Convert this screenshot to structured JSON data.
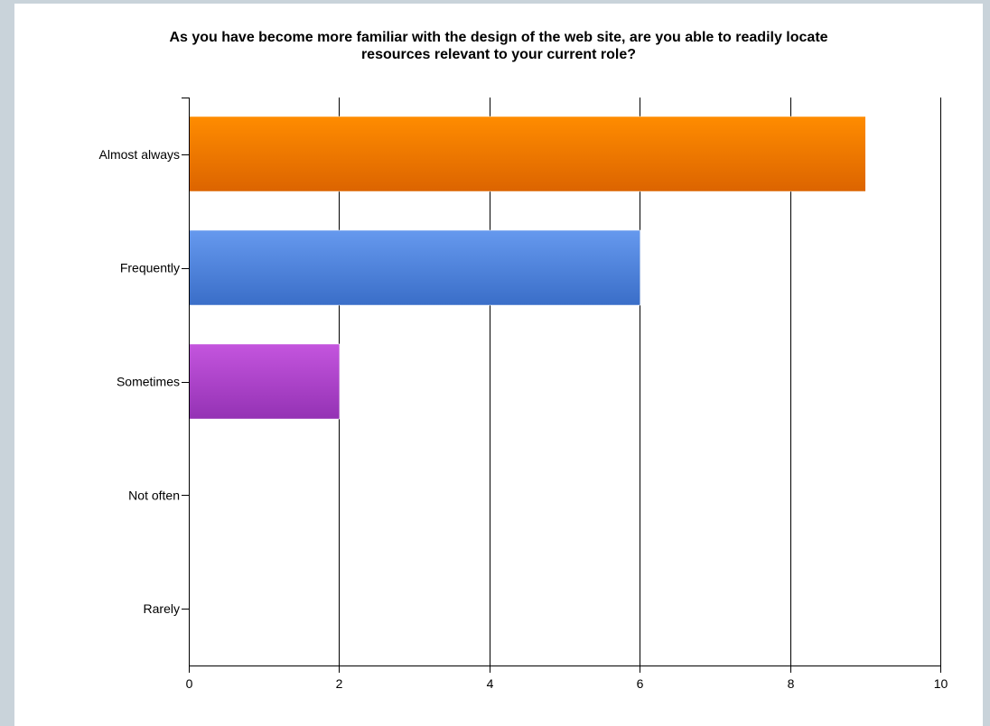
{
  "chart_data": {
    "type": "bar",
    "orientation": "horizontal",
    "title_lines": [
      "As you have become more familiar with the design of the web site, are you able to readily locate",
      "resources relevant to your current role?"
    ],
    "categories": [
      "Almost always",
      "Frequently",
      "Sometimes",
      "Not often",
      "Rarely"
    ],
    "values": [
      9,
      6,
      2,
      0,
      0
    ],
    "bar_colors": [
      [
        "#ff8c00",
        "#dc6400"
      ],
      [
        "#6699ee",
        "#3a6ec8"
      ],
      [
        "#c455de",
        "#9432b4"
      ],
      [
        "#cccccc",
        "#999999"
      ],
      [
        "#cccccc",
        "#999999"
      ]
    ],
    "xlim": [
      0,
      10
    ],
    "xticks": [
      0,
      2,
      4,
      6,
      8,
      10
    ],
    "grid": true,
    "legend": "none"
  }
}
